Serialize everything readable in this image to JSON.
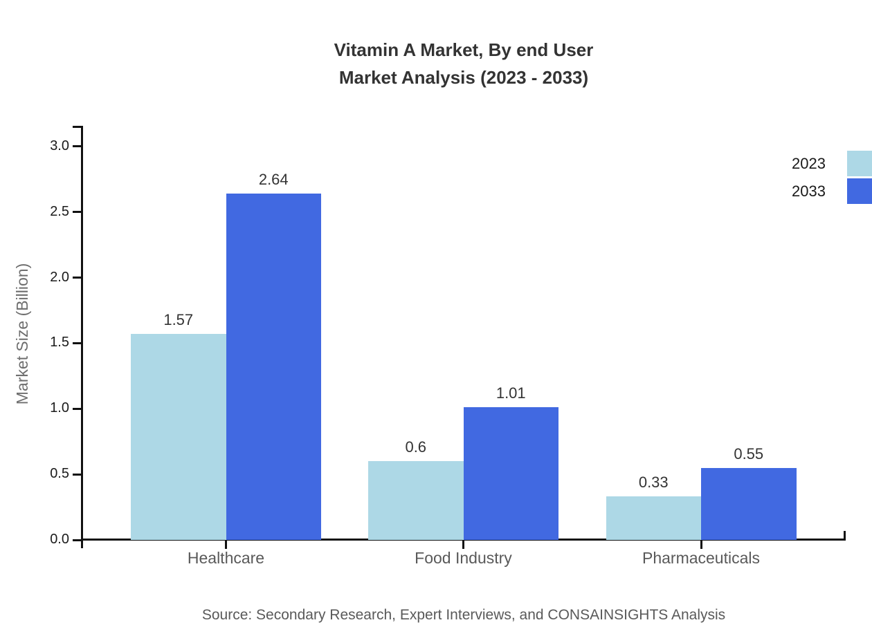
{
  "title": {
    "line1": "Vitamin A Market, By end User",
    "line2": "Market Analysis (2023 - 2033)"
  },
  "y_axis": {
    "label": "Market Size (Billion)",
    "tick_labels": [
      "0.0",
      "0.5",
      "1.0",
      "1.5",
      "2.0",
      "2.5",
      "3.0"
    ]
  },
  "source": "Source: Secondary Research, Expert Interviews, and CONSAINSIGHTS Analysis",
  "colors": {
    "series_2023": "#ADD8E6",
    "series_2033": "#4169E1",
    "axis": "#111111",
    "title_text": "#333333",
    "muted_text": "#595959"
  },
  "chart_data": {
    "type": "bar",
    "title": "Vitamin A Market, By end User Market Analysis (2023 - 2033)",
    "categories": [
      "Healthcare",
      "Food Industry",
      "Pharmaceuticals"
    ],
    "series": [
      {
        "name": "2023",
        "color": "#ADD8E6",
        "values": [
          1.57,
          0.6,
          0.33
        ],
        "labels": [
          "1.57",
          "0.6",
          "0.33"
        ]
      },
      {
        "name": "2033",
        "color": "#4169E1",
        "values": [
          2.64,
          1.01,
          0.55
        ],
        "labels": [
          "2.64",
          "1.01",
          "0.55"
        ]
      }
    ],
    "xlabel": "",
    "ylabel": "Market Size (Billion)",
    "ylim": [
      0,
      3.0
    ],
    "yticks": [
      0.0,
      0.5,
      1.0,
      1.5,
      2.0,
      2.5,
      3.0
    ],
    "grid": false,
    "legend_position": "upper right",
    "value_labels_shown": true
  }
}
